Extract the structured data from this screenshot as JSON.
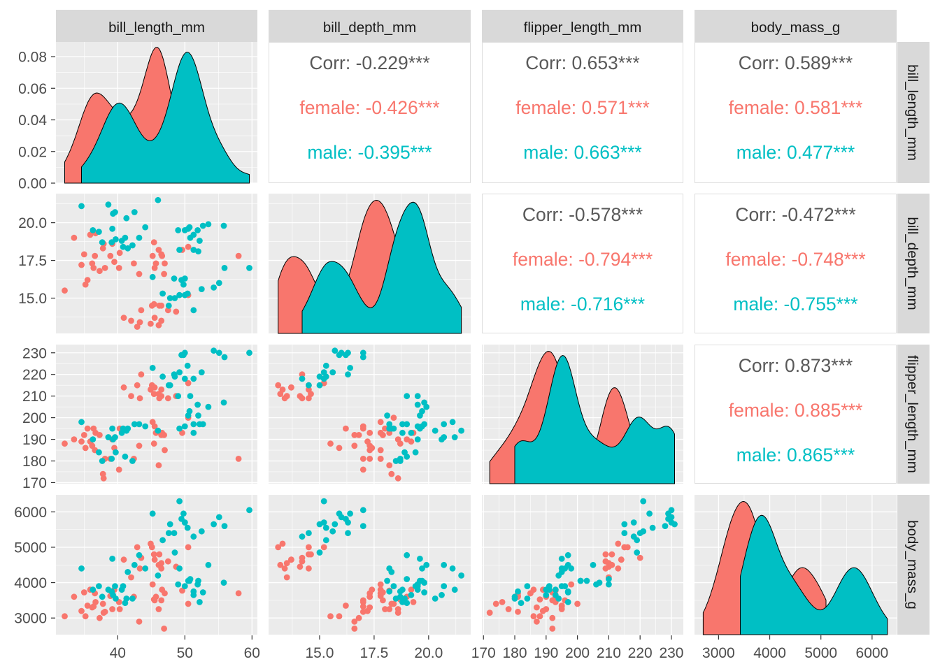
{
  "chart_data": {
    "type": "scatter-matrix",
    "variables": [
      "bill_length_mm",
      "bill_depth_mm",
      "flipper_length_mm",
      "body_mass_g"
    ],
    "ranges": {
      "bill_length_mm": [
        30.8,
        60.8
      ],
      "bill_depth_mm": [
        12.66,
        21.93
      ],
      "flipper_length_mm": [
        169.5,
        233.8
      ],
      "body_mass_g": [
        2530,
        6480
      ]
    },
    "ticks": {
      "bill_length_mm": [
        40,
        50,
        60
      ],
      "bill_depth_mm": [
        15,
        17.5,
        20
      ],
      "flipper_length_mm": [
        170,
        180,
        190,
        200,
        210,
        220,
        230
      ],
      "body_mass_g": [
        3000,
        4000,
        5000,
        6000
      ]
    },
    "tick_labels": {
      "bill_length_mm": [
        "40",
        "50",
        "60"
      ],
      "bill_depth_mm": [
        "15.0",
        "17.5",
        "20.0"
      ],
      "flipper_length_mm": [
        "170",
        "180",
        "190",
        "200",
        "210",
        "220",
        "230"
      ],
      "body_mass_g": [
        "3000",
        "4000",
        "5000",
        "6000"
      ]
    },
    "density_ticks": [
      0,
      0.02,
      0.04,
      0.06,
      0.08
    ],
    "density_tick_labels": [
      "0.00",
      "0.02",
      "0.04",
      "0.06",
      "0.08"
    ],
    "density_ylim": [
      0,
      0.0893
    ],
    "grid": true,
    "legend": "none",
    "colors": {
      "female": "#F8766D",
      "male": "#00BFC4",
      "panel": "#EBEBEB",
      "strip": "#D9D9D9",
      "corr": "#595959"
    },
    "series": [
      {
        "name": "female",
        "columns": [
          "bill_length_mm",
          "bill_depth_mm",
          "flipper_length_mm",
          "body_mass_g"
        ],
        "points": [
          [
            36.7,
            19.3,
            193,
            3450
          ],
          [
            39.5,
            17.4,
            186,
            3800
          ],
          [
            40.3,
            18.0,
            195,
            3250
          ],
          [
            36.6,
            17.8,
            185,
            3700
          ],
          [
            38.9,
            17.8,
            181,
            3625
          ],
          [
            35.9,
            19.2,
            189,
            3800
          ],
          [
            37.8,
            18.3,
            174,
            3400
          ],
          [
            35.5,
            16.2,
            195,
            3350
          ],
          [
            34.6,
            17.2,
            189,
            3200
          ],
          [
            36.4,
            17.0,
            195,
            3325
          ],
          [
            37.9,
            18.6,
            172,
            3150
          ],
          [
            39.2,
            18.6,
            190,
            3250
          ],
          [
            33.5,
            19.0,
            190,
            3600
          ],
          [
            32.1,
            15.5,
            188,
            3050
          ],
          [
            35.0,
            17.9,
            192,
            3725
          ],
          [
            37.3,
            16.8,
            192,
            3000
          ],
          [
            36.2,
            17.3,
            187,
            3300
          ],
          [
            38.1,
            17.0,
            181,
            3175
          ],
          [
            35.2,
            15.9,
            186,
            3050
          ],
          [
            40.2,
            17.0,
            176,
            3450
          ],
          [
            46.5,
            17.9,
            192,
            3500
          ],
          [
            45.4,
            18.7,
            188,
            3525
          ],
          [
            45.2,
            17.8,
            198,
            3950
          ],
          [
            46.1,
            18.2,
            178,
            3250
          ],
          [
            46.6,
            17.8,
            193,
            3800
          ],
          [
            47.0,
            17.3,
            185,
            3700
          ],
          [
            58.0,
            17.8,
            181,
            3700
          ],
          [
            42.4,
            17.3,
            181,
            3600
          ],
          [
            43.2,
            16.6,
            187,
            2900
          ],
          [
            46.9,
            16.6,
            192,
            2700
          ],
          [
            45.7,
            17.3,
            193,
            3600
          ],
          [
            50.5,
            18.4,
            200,
            3400
          ],
          [
            45.5,
            17.0,
            196,
            3500
          ],
          [
            49.6,
            18.2,
            193,
            3775
          ],
          [
            46.1,
            13.2,
            211,
            4500
          ],
          [
            48.7,
            14.1,
            210,
            4450
          ],
          [
            46.5,
            13.5,
            210,
            4550
          ],
          [
            45.4,
            14.6,
            211,
            4800
          ],
          [
            43.3,
            13.4,
            209,
            4400
          ],
          [
            40.9,
            13.7,
            214,
            4650
          ],
          [
            45.5,
            13.7,
            214,
            4650
          ],
          [
            42.0,
            13.5,
            210,
            4150
          ],
          [
            46.2,
            14.5,
            209,
            4800
          ],
          [
            45.1,
            14.5,
            215,
            5000
          ],
          [
            46.5,
            14.5,
            213,
            4400
          ],
          [
            50.5,
            15.2,
            216,
            5000
          ],
          [
            43.5,
            14.2,
            220,
            4700
          ],
          [
            47.5,
            14.2,
            209,
            4600
          ],
          [
            42.9,
            13.1,
            215,
            5000
          ],
          [
            44.9,
            13.3,
            213,
            5100
          ]
        ]
      },
      {
        "name": "male",
        "columns": [
          "bill_length_mm",
          "bill_depth_mm",
          "flipper_length_mm",
          "body_mass_g"
        ],
        "points": [
          [
            39.1,
            18.7,
            181,
            3750
          ],
          [
            39.3,
            20.6,
            190,
            3650
          ],
          [
            39.2,
            19.6,
            195,
            4675
          ],
          [
            38.6,
            21.2,
            191,
            3800
          ],
          [
            34.6,
            21.1,
            198,
            4400
          ],
          [
            42.5,
            20.7,
            197,
            4500
          ],
          [
            46.0,
            21.5,
            194,
            4200
          ],
          [
            37.7,
            18.7,
            180,
            3600
          ],
          [
            40.6,
            18.8,
            193,
            3800
          ],
          [
            41.1,
            19.0,
            182,
            3425
          ],
          [
            43.2,
            19.0,
            197,
            4775
          ],
          [
            41.3,
            20.3,
            194,
            3550
          ],
          [
            39.6,
            20.7,
            191,
            3900
          ],
          [
            44.1,
            19.7,
            196,
            4400
          ],
          [
            37.2,
            19.4,
            184,
            3900
          ],
          [
            40.8,
            18.4,
            195,
            3900
          ],
          [
            42.2,
            18.5,
            180,
            3550
          ],
          [
            39.7,
            18.9,
            184,
            3550
          ],
          [
            41.5,
            18.3,
            195,
            4300
          ],
          [
            36.3,
            19.5,
            190,
            3800
          ],
          [
            50.0,
            19.5,
            196,
            3900
          ],
          [
            51.3,
            19.2,
            193,
            3650
          ],
          [
            52.7,
            19.8,
            197,
            3725
          ],
          [
            51.3,
            18.2,
            197,
            3750
          ],
          [
            52.0,
            18.1,
            201,
            4050
          ],
          [
            50.5,
            19.6,
            201,
            4050
          ],
          [
            49.2,
            18.2,
            195,
            4400
          ],
          [
            50.8,
            19.0,
            210,
            4100
          ],
          [
            55.8,
            19.8,
            207,
            4000
          ],
          [
            53.5,
            19.9,
            205,
            4500
          ],
          [
            49.0,
            19.5,
            210,
            3950
          ],
          [
            51.9,
            19.5,
            206,
            3950
          ],
          [
            50.7,
            19.7,
            203,
            4050
          ],
          [
            52.2,
            18.8,
            197,
            3450
          ],
          [
            50.0,
            16.3,
            230,
            5700
          ],
          [
            47.6,
            14.5,
            215,
            5400
          ],
          [
            46.7,
            15.3,
            219,
            5200
          ],
          [
            50.0,
            15.2,
            218,
            5700
          ],
          [
            47.8,
            15.0,
            215,
            5650
          ],
          [
            49.2,
            15.2,
            221,
            6300
          ],
          [
            48.4,
            16.3,
            220,
            5400
          ],
          [
            59.6,
            17.0,
            230,
            6050
          ],
          [
            55.9,
            17.0,
            228,
            5600
          ],
          [
            50.4,
            15.3,
            224,
            5550
          ],
          [
            51.3,
            14.2,
            218,
            5300
          ],
          [
            52.5,
            15.6,
            221,
            5450
          ],
          [
            49.5,
            16.2,
            229,
            5800
          ],
          [
            54.3,
            15.7,
            231,
            5650
          ],
          [
            48.5,
            15.0,
            219,
            4850
          ],
          [
            45.2,
            16.4,
            223,
            5950
          ],
          [
            49.8,
            15.9,
            229,
            5950
          ],
          [
            55.1,
            16.0,
            230,
            5850
          ]
        ]
      }
    ],
    "correlations": [
      {
        "row": 0,
        "col": 1,
        "overall": "Corr: -0.229***",
        "female": "female: -0.426***",
        "male": "male: -0.395***"
      },
      {
        "row": 0,
        "col": 2,
        "overall": "Corr: 0.653***",
        "female": "female: 0.571***",
        "male": "male: 0.663***"
      },
      {
        "row": 0,
        "col": 3,
        "overall": "Corr: 0.589***",
        "female": "female: 0.581***",
        "male": "male: 0.477***"
      },
      {
        "row": 1,
        "col": 2,
        "overall": "Corr: -0.578***",
        "female": "female: -0.794***",
        "male": "male: -0.716***"
      },
      {
        "row": 1,
        "col": 3,
        "overall": "Corr: -0.472***",
        "female": "female: -0.748***",
        "male": "male: -0.755***"
      },
      {
        "row": 2,
        "col": 3,
        "overall": "Corr: 0.873***",
        "female": "female: 0.885***",
        "male": "male: 0.865***"
      }
    ]
  }
}
